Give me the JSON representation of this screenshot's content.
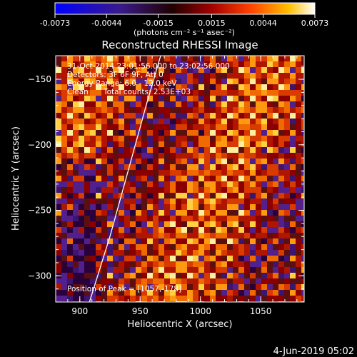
{
  "colorbar": {
    "ticks": [
      -0.0073,
      -0.0044,
      -0.0015,
      0.0015,
      0.0044,
      0.0073
    ],
    "tick_labels": [
      "-0.0073",
      "-0.0044",
      "-0.0015",
      "0.0015",
      "0.0044",
      "0.0073"
    ],
    "units_line": "(photons cm⁻² s⁻¹ asec⁻²)",
    "range": [
      -0.0073,
      0.0073
    ]
  },
  "chart_data": {
    "type": "heatmap",
    "title": "Reconstructed RHESSI Image",
    "xlabel": "Heliocentric X (arcsec)",
    "ylabel": "Heliocentric Y (arcsec)",
    "xlim": [
      880,
      1086
    ],
    "ylim": [
      -320,
      -132
    ],
    "xticks": [
      900,
      950,
      1000,
      1050
    ],
    "yticks": [
      -150,
      -200,
      -250,
      -300
    ],
    "xtick_labels": [
      "900",
      "950",
      "1000",
      "1050"
    ],
    "ytick_labels": [
      "−150",
      "−200",
      "−250",
      "−300"
    ],
    "annotations": [
      "31-Oct-2014 23:01:56.000 to 23:02:56.000",
      "Detectors: 3F 6F 9F, Att 0",
      "Energy Range: 6.0 - 12.0 keV",
      "Clean",
      "Total counts: 2.53E+03"
    ],
    "peak_label": "Position of Peak = [1057,-178]",
    "peak": [
      1057,
      -178
    ],
    "limb_curve": [
      [
        908,
        -320
      ],
      [
        925,
        -270
      ],
      [
        940,
        -220
      ],
      [
        955,
        -170
      ],
      [
        967,
        -132
      ]
    ],
    "grid": false
  },
  "footer_date": "4-Jun-2019 05:02"
}
